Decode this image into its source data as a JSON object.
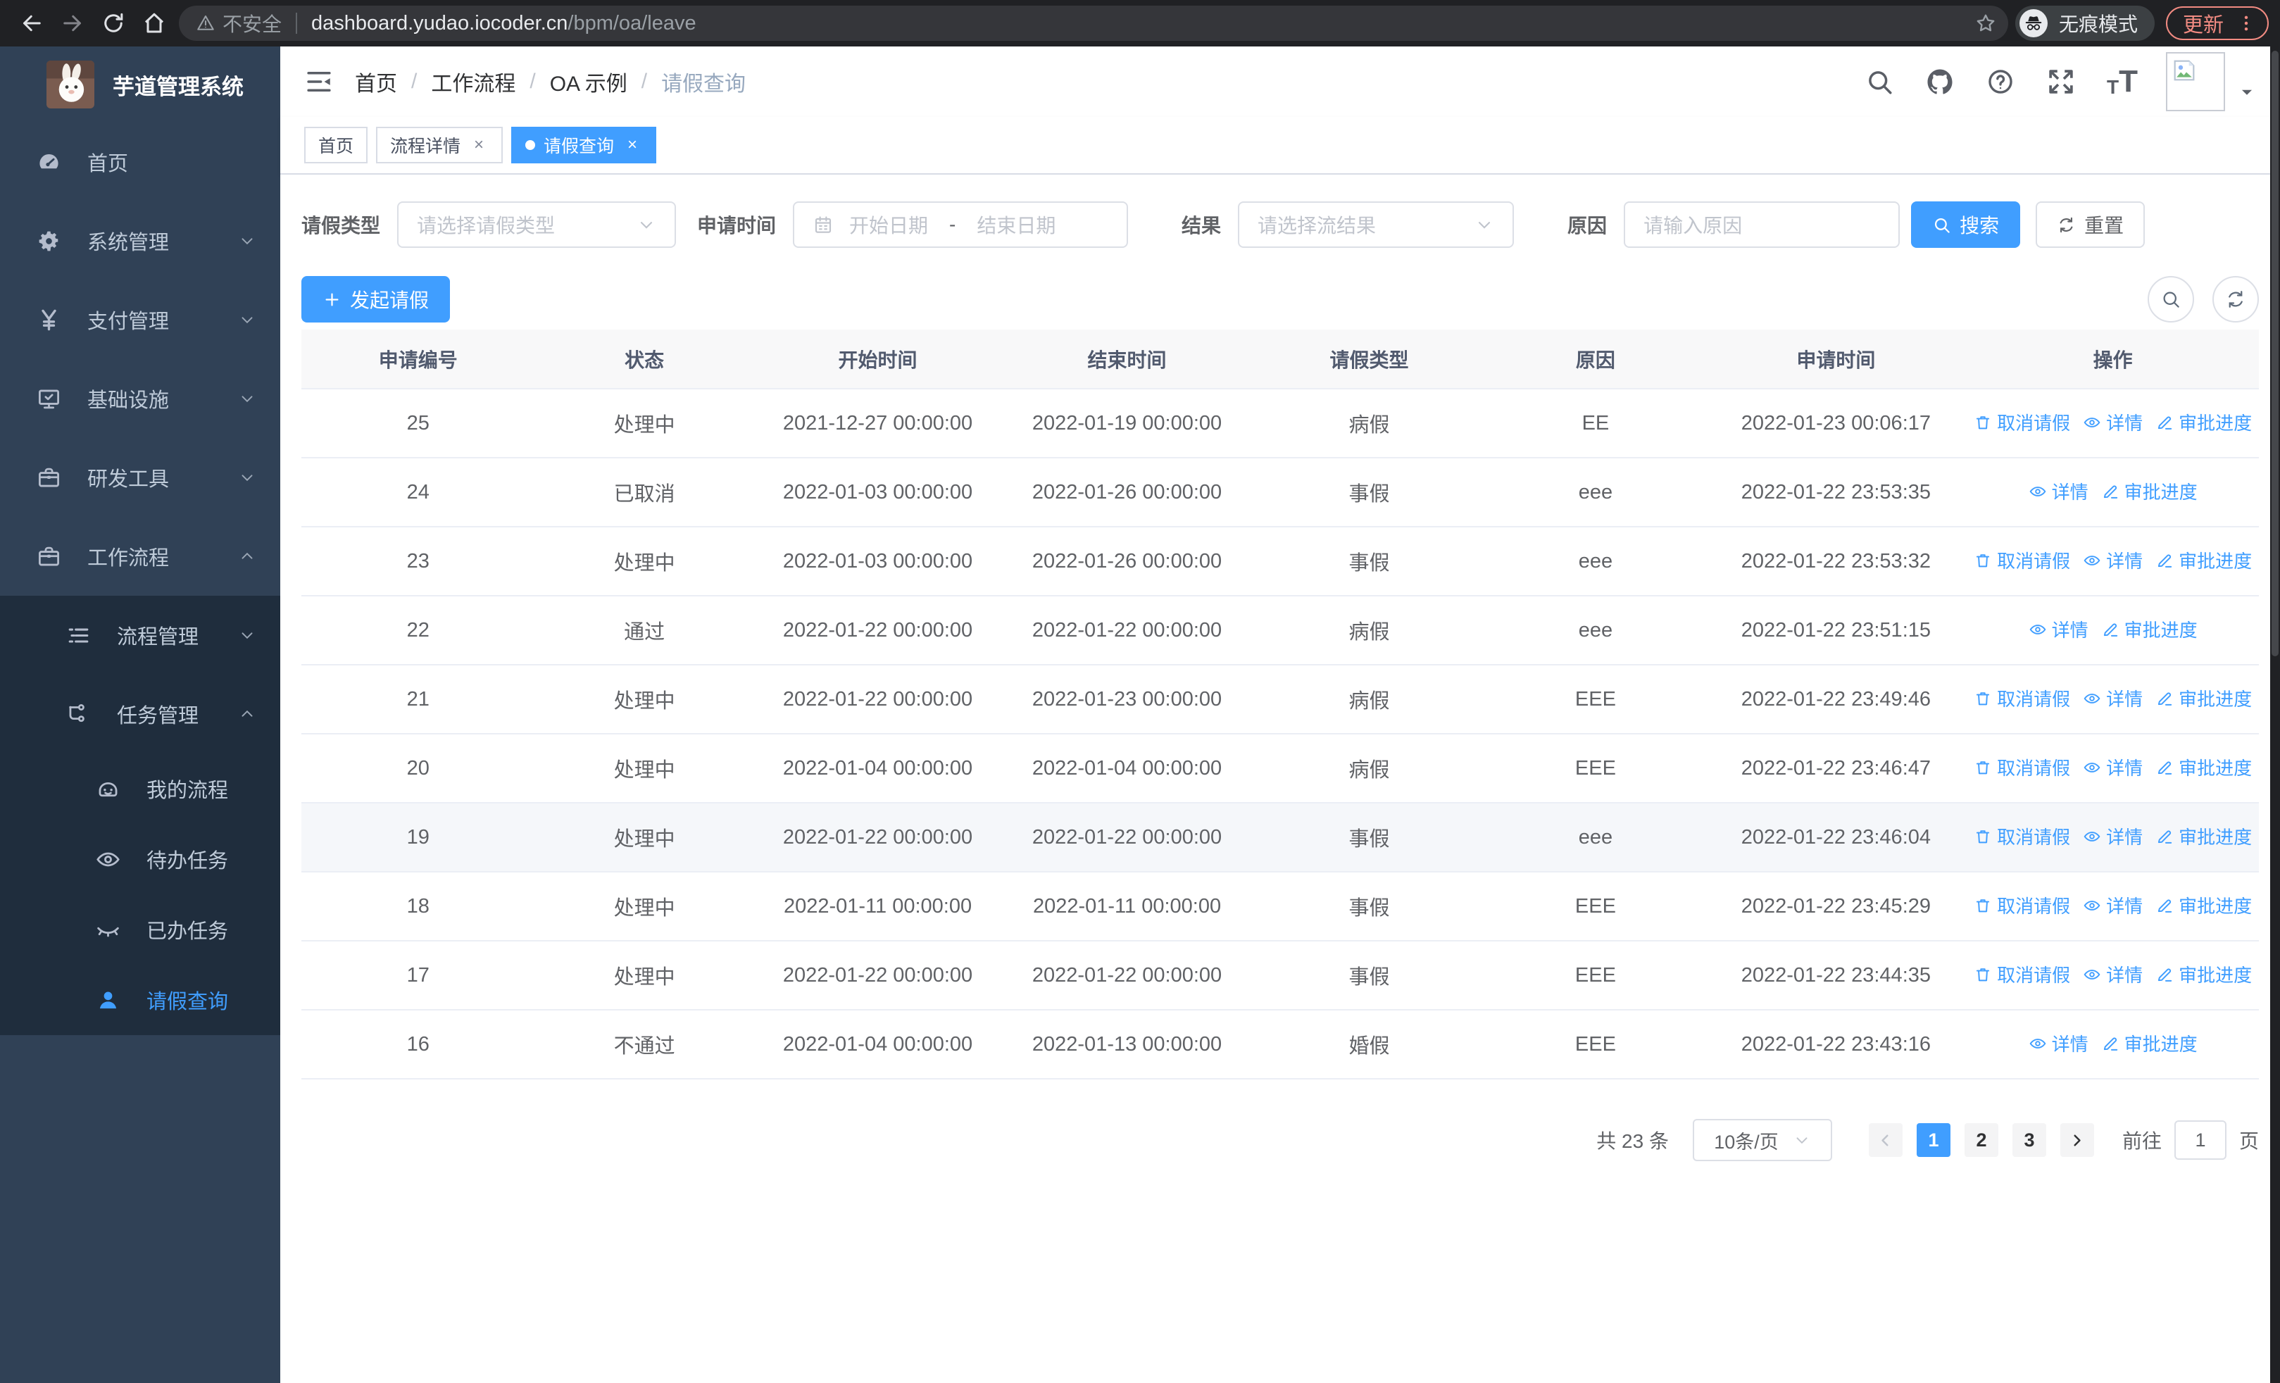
{
  "browser": {
    "security_label": "不安全",
    "url_host": "dashboard.yudao.iocoder.cn",
    "url_path": "/bpm/oa/leave",
    "incognito_label": "无痕模式",
    "update_label": "更新"
  },
  "sidebar": {
    "app_title": "芋道管理系统",
    "items": [
      {
        "label": "首页",
        "icon": "gauge-icon",
        "level": 1
      },
      {
        "label": "系统管理",
        "icon": "gear-icon",
        "level": 1,
        "chevron": "down"
      },
      {
        "label": "支付管理",
        "icon": "yen-icon",
        "level": 1,
        "chevron": "down"
      },
      {
        "label": "基础设施",
        "icon": "monitor-icon",
        "level": 1,
        "chevron": "down"
      },
      {
        "label": "研发工具",
        "icon": "toolbox-icon",
        "level": 1,
        "chevron": "down"
      },
      {
        "label": "工作流程",
        "icon": "briefcase-icon",
        "level": 1,
        "chevron": "up"
      },
      {
        "label": "流程管理",
        "icon": "list-icon",
        "level": 2,
        "chevron": "down",
        "sub": true
      },
      {
        "label": "任务管理",
        "icon": "flow-icon",
        "level": 2,
        "chevron": "up",
        "sub": true
      },
      {
        "label": "我的流程",
        "icon": "robot-icon",
        "level": 3,
        "sub": true
      },
      {
        "label": "待办任务",
        "icon": "eye-icon",
        "level": 3,
        "sub": true
      },
      {
        "label": "已办任务",
        "icon": "eye-closed-icon",
        "level": 3,
        "sub": true
      },
      {
        "label": "请假查询",
        "icon": "user-icon",
        "level": 3,
        "sub": true,
        "active": true
      }
    ]
  },
  "header": {
    "breadcrumb": [
      "首页",
      "工作流程",
      "OA 示例",
      "请假查询"
    ],
    "separator": "/",
    "action_icons": [
      "search-icon",
      "github-icon",
      "question-icon",
      "fullscreen-icon"
    ]
  },
  "tabs": [
    {
      "label": "首页"
    },
    {
      "label": "流程详情",
      "closable": true
    },
    {
      "label": "请假查询",
      "closable": true,
      "active": true
    }
  ],
  "filters": {
    "leave_type_label": "请假类型",
    "leave_type_placeholder": "请选择请假类型",
    "apply_time_label": "申请时间",
    "start_date_placeholder": "开始日期",
    "range_separator": "-",
    "end_date_placeholder": "结束日期",
    "result_label": "结果",
    "result_placeholder": "请选择流结果",
    "reason_label": "原因",
    "reason_placeholder": "请输入原因",
    "search_label": "搜索",
    "reset_label": "重置"
  },
  "toolbar": {
    "create_label": "发起请假"
  },
  "table": {
    "columns": [
      "申请编号",
      "状态",
      "开始时间",
      "结束时间",
      "请假类型",
      "原因",
      "申请时间",
      "操作"
    ],
    "action_labels": {
      "cancel": "取消请假",
      "detail": "详情",
      "progress": "审批进度"
    },
    "rows": [
      {
        "id": "25",
        "status": "处理中",
        "start": "2021-12-27 00:00:00",
        "end": "2022-01-19 00:00:00",
        "type": "病假",
        "reason": "EE",
        "applied": "2022-01-23 00:06:17",
        "actions": [
          "cancel",
          "detail",
          "progress"
        ]
      },
      {
        "id": "24",
        "status": "已取消",
        "start": "2022-01-03 00:00:00",
        "end": "2022-01-26 00:00:00",
        "type": "事假",
        "reason": "eee",
        "applied": "2022-01-22 23:53:35",
        "actions": [
          "detail",
          "progress"
        ]
      },
      {
        "id": "23",
        "status": "处理中",
        "start": "2022-01-03 00:00:00",
        "end": "2022-01-26 00:00:00",
        "type": "事假",
        "reason": "eee",
        "applied": "2022-01-22 23:53:32",
        "actions": [
          "cancel",
          "detail",
          "progress"
        ]
      },
      {
        "id": "22",
        "status": "通过",
        "start": "2022-01-22 00:00:00",
        "end": "2022-01-22 00:00:00",
        "type": "病假",
        "reason": "eee",
        "applied": "2022-01-22 23:51:15",
        "actions": [
          "detail",
          "progress"
        ]
      },
      {
        "id": "21",
        "status": "处理中",
        "start": "2022-01-22 00:00:00",
        "end": "2022-01-23 00:00:00",
        "type": "病假",
        "reason": "EEE",
        "applied": "2022-01-22 23:49:46",
        "actions": [
          "cancel",
          "detail",
          "progress"
        ]
      },
      {
        "id": "20",
        "status": "处理中",
        "start": "2022-01-04 00:00:00",
        "end": "2022-01-04 00:00:00",
        "type": "病假",
        "reason": "EEE",
        "applied": "2022-01-22 23:46:47",
        "actions": [
          "cancel",
          "detail",
          "progress"
        ]
      },
      {
        "id": "19",
        "status": "处理中",
        "start": "2022-01-22 00:00:00",
        "end": "2022-01-22 00:00:00",
        "type": "事假",
        "reason": "eee",
        "applied": "2022-01-22 23:46:04",
        "actions": [
          "cancel",
          "detail",
          "progress"
        ],
        "highlight": true
      },
      {
        "id": "18",
        "status": "处理中",
        "start": "2022-01-11 00:00:00",
        "end": "2022-01-11 00:00:00",
        "type": "事假",
        "reason": "EEE",
        "applied": "2022-01-22 23:45:29",
        "actions": [
          "cancel",
          "detail",
          "progress"
        ]
      },
      {
        "id": "17",
        "status": "处理中",
        "start": "2022-01-22 00:00:00",
        "end": "2022-01-22 00:00:00",
        "type": "事假",
        "reason": "EEE",
        "applied": "2022-01-22 23:44:35",
        "actions": [
          "cancel",
          "detail",
          "progress"
        ]
      },
      {
        "id": "16",
        "status": "不通过",
        "start": "2022-01-04 00:00:00",
        "end": "2022-01-13 00:00:00",
        "type": "婚假",
        "reason": "EEE",
        "applied": "2022-01-22 23:43:16",
        "actions": [
          "detail",
          "progress"
        ]
      }
    ]
  },
  "pagination": {
    "total_label": "共 23 条",
    "page_size_label": "10条/页",
    "pages": [
      "1",
      "2",
      "3"
    ],
    "active_page": "1",
    "goto_label": "前往",
    "goto_value": "1",
    "page_unit_label": "页"
  },
  "colors": {
    "accent": "#409eff",
    "sidebar_bg": "#304156",
    "submenu_bg": "#1f2d3d",
    "update_accent": "#f28b82"
  }
}
